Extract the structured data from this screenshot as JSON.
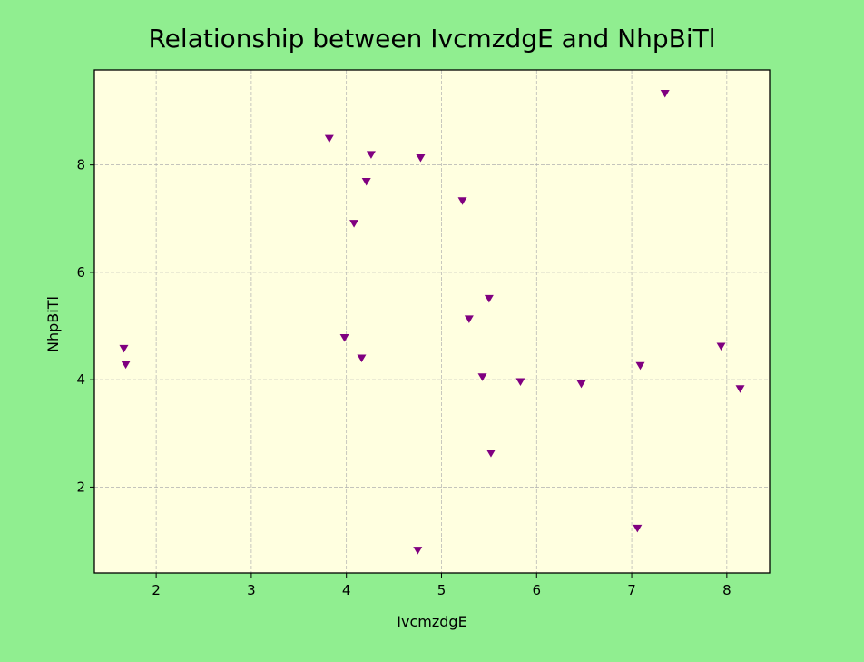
{
  "chart_data": {
    "type": "scatter",
    "title": "Relationship between IvcmzdgE and NhpBiTl",
    "xlabel": "IvcmzdgE",
    "ylabel": "NhpBiTl",
    "xlim": [
      1.35,
      8.45
    ],
    "ylim": [
      0.4,
      9.77
    ],
    "xticks": [
      2,
      3,
      4,
      5,
      6,
      7,
      8
    ],
    "yticks": [
      2,
      4,
      6,
      8
    ],
    "grid": true,
    "marker": "triangle-down",
    "colors": {
      "background": "#90ee90",
      "plot_area": "#ffffe0",
      "marker": "#800080",
      "grid": "#b0b0b0",
      "axes": "#000000"
    },
    "points": [
      {
        "x": 1.66,
        "y": 4.58
      },
      {
        "x": 1.68,
        "y": 4.28
      },
      {
        "x": 3.82,
        "y": 8.49
      },
      {
        "x": 3.98,
        "y": 4.78
      },
      {
        "x": 4.08,
        "y": 6.91
      },
      {
        "x": 4.16,
        "y": 4.4
      },
      {
        "x": 4.21,
        "y": 7.69
      },
      {
        "x": 4.26,
        "y": 8.19
      },
      {
        "x": 4.75,
        "y": 0.82
      },
      {
        "x": 4.78,
        "y": 8.13
      },
      {
        "x": 5.22,
        "y": 7.33
      },
      {
        "x": 5.29,
        "y": 5.13
      },
      {
        "x": 5.43,
        "y": 4.05
      },
      {
        "x": 5.5,
        "y": 5.51
      },
      {
        "x": 5.52,
        "y": 2.63
      },
      {
        "x": 5.83,
        "y": 3.96
      },
      {
        "x": 6.47,
        "y": 3.92
      },
      {
        "x": 7.06,
        "y": 1.23
      },
      {
        "x": 7.09,
        "y": 4.26
      },
      {
        "x": 7.35,
        "y": 9.33
      },
      {
        "x": 7.94,
        "y": 4.62
      },
      {
        "x": 8.14,
        "y": 3.83
      }
    ]
  }
}
